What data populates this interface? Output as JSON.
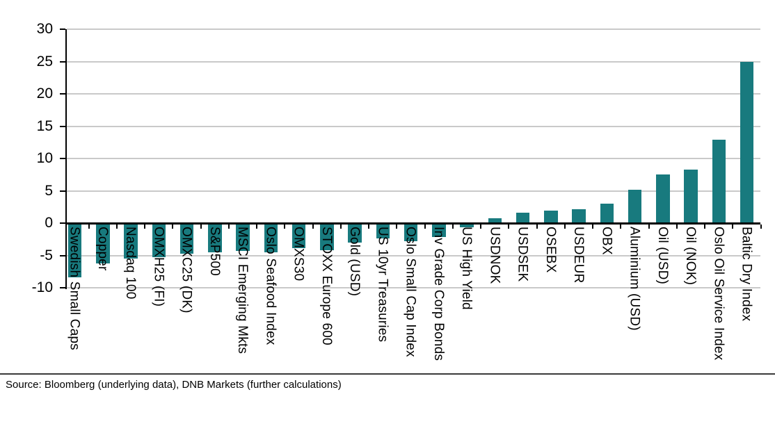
{
  "chart_data": {
    "type": "bar",
    "title": "",
    "categories": [
      "Swedish Small Caps",
      "Copper",
      "Nasdaq 100",
      "OMXH25 (FI)",
      "OMXC25 (DK)",
      "S&P500",
      "MSCI Emerging Mkts",
      "Oslo Seafood Index",
      "OMXS30",
      "STOXX Europe 600",
      "Gold (USD)",
      "US 10yr Treasuries",
      "Oslo Small Cap Index",
      "Inv Grade Corp Bonds",
      "US High Yield",
      "USDNOK",
      "USDSEK",
      "OSEBX",
      "USDEUR",
      "OBX",
      "Aluminium (USD)",
      "Oil (USD)",
      "Oil (NOK)",
      "Oslo Oil Service Index",
      "Baltic Dry Index"
    ],
    "values": [
      -8.4,
      -6.2,
      -5.5,
      -5.3,
      -4.7,
      -4.5,
      -4.3,
      -4.5,
      -3.9,
      -4.2,
      -3.0,
      -2.4,
      -2.8,
      -2.1,
      -0.6,
      0.8,
      1.6,
      1.9,
      2.1,
      3.0,
      5.2,
      7.5,
      8.3,
      12.9,
      25.0
    ],
    "xlabel": "",
    "ylabel": "",
    "ylim": [
      -10,
      30
    ],
    "yticks": [
      30,
      25,
      20,
      15,
      10,
      5,
      0,
      -5,
      -10
    ],
    "legend": "none",
    "grid": "horizontal",
    "bar_color": "#187a7e",
    "gridline_color": "#c9c9c9",
    "axis_color": "#000000"
  },
  "footer": {
    "source": "Source: Bloomberg (underlying data), DNB Markets (further calculations)"
  }
}
